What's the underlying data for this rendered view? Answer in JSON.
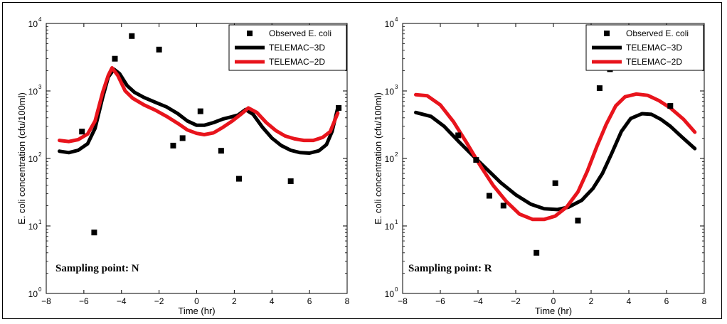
{
  "chart_data": [
    {
      "type": "scatter",
      "panel": "N",
      "annotation": "Sampling point: N",
      "xlabel": "Time (hr)",
      "ylabel": "E. coli concentration (cfu/100ml)",
      "xlim": [
        -8,
        8
      ],
      "ylim": [
        1,
        10000
      ],
      "yscale": "log",
      "x_ticks": [
        "−8",
        "−6",
        "−4",
        "−2",
        "0",
        "2",
        "4",
        "6",
        "8"
      ],
      "y_ticks": [
        "10",
        "10",
        "10",
        "10",
        "10"
      ],
      "y_tick_exponents": [
        "0",
        "1",
        "2",
        "3",
        "4"
      ],
      "legend_position": "top-right",
      "series": [
        {
          "name": "Observed E. coli",
          "kind": "markers",
          "color": "#000000",
          "points": [
            [
              -6.1,
              250
            ],
            [
              -5.45,
              8
            ],
            [
              -4.35,
              3000
            ],
            [
              -3.45,
              6500
            ],
            [
              -2.0,
              4100
            ],
            [
              -1.25,
              155
            ],
            [
              -0.75,
              200
            ],
            [
              0.2,
              500
            ],
            [
              1.3,
              130
            ],
            [
              2.25,
              50
            ],
            [
              5.0,
              46
            ],
            [
              7.55,
              560
            ]
          ]
        },
        {
          "name": "TELEMAC−3D",
          "kind": "line",
          "color": "#000000",
          "points": [
            [
              -7.3,
              128
            ],
            [
              -6.8,
              122
            ],
            [
              -6.3,
              132
            ],
            [
              -5.8,
              165
            ],
            [
              -5.4,
              280
            ],
            [
              -5.0,
              800
            ],
            [
              -4.7,
              1600
            ],
            [
              -4.4,
              2100
            ],
            [
              -4.1,
              1800
            ],
            [
              -3.7,
              1200
            ],
            [
              -3.3,
              950
            ],
            [
              -2.8,
              800
            ],
            [
              -2.2,
              680
            ],
            [
              -1.6,
              580
            ],
            [
              -1.0,
              460
            ],
            [
              -0.5,
              360
            ],
            [
              0.0,
              310
            ],
            [
              0.4,
              310
            ],
            [
              0.9,
              340
            ],
            [
              1.4,
              385
            ],
            [
              1.8,
              410
            ],
            [
              2.2,
              440
            ],
            [
              2.6,
              530
            ],
            [
              3.0,
              450
            ],
            [
              3.5,
              290
            ],
            [
              4.0,
              200
            ],
            [
              4.5,
              155
            ],
            [
              5.0,
              132
            ],
            [
              5.5,
              122
            ],
            [
              6.0,
              120
            ],
            [
              6.5,
              130
            ],
            [
              6.9,
              160
            ],
            [
              7.2,
              250
            ],
            [
              7.5,
              560
            ]
          ]
        },
        {
          "name": "TELEMAC−2D",
          "kind": "line",
          "color": "#e8141c",
          "points": [
            [
              -7.3,
              185
            ],
            [
              -6.8,
              178
            ],
            [
              -6.3,
              190
            ],
            [
              -5.8,
              230
            ],
            [
              -5.4,
              360
            ],
            [
              -5.0,
              950
            ],
            [
              -4.7,
              1700
            ],
            [
              -4.5,
              2200
            ],
            [
              -4.2,
              1700
            ],
            [
              -3.8,
              1000
            ],
            [
              -3.4,
              780
            ],
            [
              -2.8,
              620
            ],
            [
              -2.2,
              520
            ],
            [
              -1.6,
              420
            ],
            [
              -1.0,
              330
            ],
            [
              -0.5,
              265
            ],
            [
              0.0,
              235
            ],
            [
              0.4,
              225
            ],
            [
              0.9,
              240
            ],
            [
              1.4,
              290
            ],
            [
              1.9,
              360
            ],
            [
              2.3,
              440
            ],
            [
              2.75,
              560
            ],
            [
              3.2,
              480
            ],
            [
              3.7,
              340
            ],
            [
              4.2,
              260
            ],
            [
              4.7,
              215
            ],
            [
              5.2,
              195
            ],
            [
              5.7,
              185
            ],
            [
              6.2,
              185
            ],
            [
              6.7,
              205
            ],
            [
              7.1,
              250
            ],
            [
              7.5,
              470
            ]
          ]
        }
      ]
    },
    {
      "type": "scatter",
      "panel": "R",
      "annotation": "Sampling point: R",
      "xlabel": "Time (hr)",
      "ylabel": "E. coli concentration (cfu/100ml)",
      "xlim": [
        -8,
        8
      ],
      "ylim": [
        1,
        10000
      ],
      "yscale": "log",
      "x_ticks": [
        "−8",
        "−6",
        "−4",
        "−2",
        "0",
        "2",
        "4",
        "6",
        "8"
      ],
      "y_ticks": [
        "10",
        "10",
        "10",
        "10",
        "10"
      ],
      "y_tick_exponents": [
        "0",
        "1",
        "2",
        "3",
        "4"
      ],
      "legend_position": "top-right",
      "series": [
        {
          "name": "Observed E. coli",
          "kind": "markers",
          "color": "#000000",
          "points": [
            [
              -5.05,
              220
            ],
            [
              -4.1,
              95
            ],
            [
              -3.4,
              28
            ],
            [
              -2.65,
              20
            ],
            [
              -0.9,
              4
            ],
            [
              0.1,
              43
            ],
            [
              1.3,
              12
            ],
            [
              2.45,
              1100
            ],
            [
              3.0,
              2100
            ],
            [
              6.2,
              600
            ]
          ]
        },
        {
          "name": "TELEMAC−3D",
          "kind": "line",
          "color": "#000000",
          "points": [
            [
              -7.3,
              480
            ],
            [
              -6.5,
              420
            ],
            [
              -5.8,
              300
            ],
            [
              -5.0,
              175
            ],
            [
              -4.2,
              105
            ],
            [
              -3.5,
              68
            ],
            [
              -2.8,
              44
            ],
            [
              -2.0,
              29
            ],
            [
              -1.2,
              21
            ],
            [
              -0.5,
              18
            ],
            [
              0.2,
              17.5
            ],
            [
              0.8,
              19
            ],
            [
              1.5,
              24
            ],
            [
              2.1,
              36
            ],
            [
              2.6,
              60
            ],
            [
              3.1,
              120
            ],
            [
              3.6,
              250
            ],
            [
              4.1,
              390
            ],
            [
              4.7,
              460
            ],
            [
              5.2,
              450
            ],
            [
              5.7,
              380
            ],
            [
              6.2,
              300
            ],
            [
              6.8,
              210
            ],
            [
              7.5,
              140
            ]
          ]
        },
        {
          "name": "TELEMAC−2D",
          "kind": "line",
          "color": "#e8141c",
          "points": [
            [
              -7.3,
              880
            ],
            [
              -6.7,
              850
            ],
            [
              -6.0,
              620
            ],
            [
              -5.3,
              350
            ],
            [
              -4.6,
              170
            ],
            [
              -3.9,
              80
            ],
            [
              -3.2,
              40
            ],
            [
              -2.5,
              23
            ],
            [
              -1.8,
              15
            ],
            [
              -1.1,
              12.5
            ],
            [
              -0.5,
              12.5
            ],
            [
              0.1,
              14
            ],
            [
              0.7,
              19
            ],
            [
              1.3,
              32
            ],
            [
              1.8,
              65
            ],
            [
              2.3,
              150
            ],
            [
              2.8,
              320
            ],
            [
              3.3,
              600
            ],
            [
              3.8,
              820
            ],
            [
              4.4,
              900
            ],
            [
              5.0,
              860
            ],
            [
              5.6,
              720
            ],
            [
              6.2,
              560
            ],
            [
              6.9,
              380
            ],
            [
              7.5,
              245
            ]
          ]
        }
      ]
    }
  ]
}
